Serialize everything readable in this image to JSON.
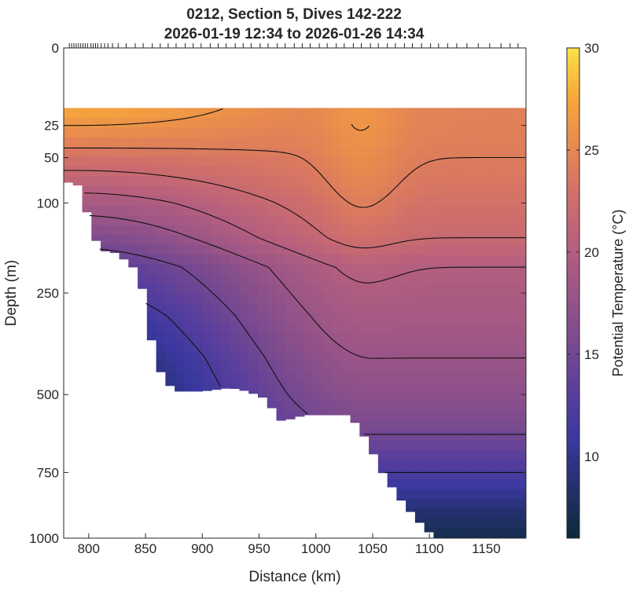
{
  "chart_data": {
    "type": "heatmap",
    "title_line1": "0212, Section 5, Dives 142-222",
    "title_line2": "2026-01-19 12:34 to 2026-01-26 14:34",
    "xlabel": "Distance (km)",
    "ylabel": "Depth (m)",
    "colorbar_label": "Potential Temperature (°C)",
    "xlim": [
      778,
      1185
    ],
    "x_ticks": [
      800,
      850,
      900,
      950,
      1000,
      1050,
      1100,
      1150
    ],
    "x_tick_labels": [
      "800",
      "850",
      "900",
      "950",
      "1000",
      "1050",
      "1100",
      "1150"
    ],
    "y_axis_scale": "square-root depth",
    "ylim": [
      0,
      1000
    ],
    "y_ticks": [
      0,
      25,
      50,
      100,
      250,
      500,
      750,
      1000
    ],
    "y_tick_labels": [
      "0",
      "25",
      "50",
      "100",
      "250",
      "500",
      "750",
      "1000"
    ],
    "colorbar_range": [
      6,
      30
    ],
    "colorbar_ticks": [
      10,
      15,
      20,
      25,
      30
    ],
    "colorbar_tick_labels": [
      "10",
      "15",
      "20",
      "25",
      "30"
    ],
    "colormap": [
      "#0c2a3a",
      "#23306a",
      "#3a38a0",
      "#5a3f9c",
      "#7a4a8f",
      "#9a5587",
      "#b7607e",
      "#d06f6a",
      "#e8894f",
      "#f6a83a",
      "#f9e24a"
    ],
    "data_top_depth_m": 15,
    "dive_marker_distances_km": [
      783,
      785,
      787,
      789,
      791,
      793,
      795,
      797,
      799,
      802,
      804,
      806,
      808,
      811,
      814,
      817,
      821,
      826,
      833,
      841,
      848,
      856,
      863,
      870,
      877,
      885,
      892,
      899,
      907,
      914,
      921,
      929,
      936,
      943,
      951,
      958,
      966,
      973,
      981,
      988,
      995,
      1003,
      1010,
      1018,
      1025,
      1033,
      1040,
      1048,
      1055,
      1063,
      1070,
      1078,
      1085,
      1093,
      1101,
      1108,
      1116,
      1124,
      1133,
      1143,
      1153,
      1163,
      1171,
      1178
    ],
    "contour_levels_degC": [
      26,
      24,
      22,
      20,
      18,
      15,
      12
    ],
    "temperature_profile_degC": {
      "depth_m": [
        15,
        25,
        50,
        75,
        100,
        150,
        200,
        300,
        400,
        500,
        600,
        750,
        900,
        1000
      ],
      "near_shelf": [
        27.5,
        26,
        23,
        21,
        19,
        16,
        13,
        10,
        8,
        7,
        7,
        7,
        7,
        7
      ],
      "offshore": [
        24.5,
        24.5,
        24,
        23.5,
        23,
        22,
        20,
        19,
        18,
        17,
        15.5,
        12,
        8.5,
        7
      ]
    },
    "seafloor_depth_m": {
      "distance_km": [
        778,
        788,
        795,
        800,
        810,
        825,
        845,
        860,
        875,
        900,
        925,
        940,
        955,
        970,
        990,
        1010,
        1030,
        1045,
        1060,
        1075,
        1090,
        1105,
        1120,
        1185
      ],
      "depth": [
        75,
        75,
        85,
        125,
        170,
        175,
        210,
        420,
        490,
        490,
        480,
        490,
        510,
        580,
        560,
        560,
        560,
        640,
        760,
        850,
        930,
        1000,
        1000,
        1000
      ]
    }
  }
}
